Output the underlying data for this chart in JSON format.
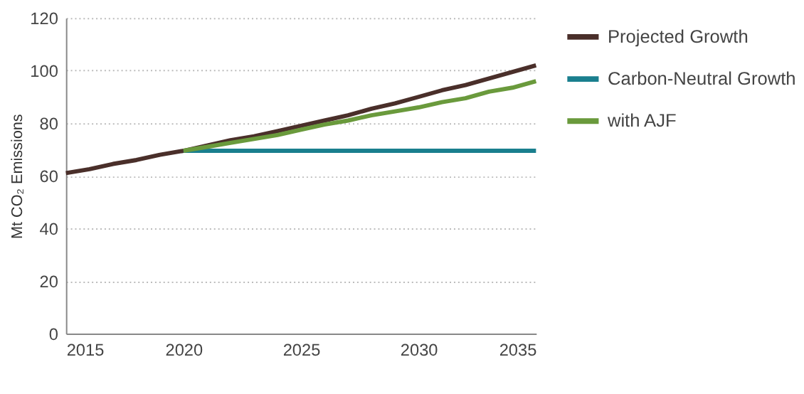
{
  "chart_data": {
    "type": "line",
    "ylabel": "Mt CO₂ Emissions",
    "xlim": [
      2015,
      2035
    ],
    "xticks": [
      2015,
      2020,
      2025,
      2030,
      2035
    ],
    "ylim": [
      0,
      120
    ],
    "yticks": [
      0,
      20,
      40,
      60,
      80,
      100,
      120
    ],
    "grid": "y",
    "legend": "right",
    "marker": "none",
    "line_style": "solid",
    "series": [
      {
        "name": "Projected Growth",
        "color": "#4a2f2a",
        "x": [
          2015,
          2016,
          2017,
          2018,
          2019,
          2020,
          2021,
          2022,
          2023,
          2024,
          2025,
          2026,
          2027,
          2028,
          2029,
          2030,
          2031,
          2032,
          2033,
          2034,
          2035
        ],
        "values": [
          61,
          62.5,
          64.5,
          66,
          68,
          69.5,
          71.5,
          73.5,
          75,
          77,
          79,
          81,
          83,
          85.5,
          87.5,
          90,
          92.5,
          94.5,
          97,
          99.5,
          102
        ]
      },
      {
        "name": "Carbon-Neutral Growth",
        "color": "#1a7f8e",
        "x": [
          2020,
          2035
        ],
        "values": [
          69.5,
          69.5
        ]
      },
      {
        "name": "with AJF",
        "color": "#6a9a3c",
        "x": [
          2020,
          2021,
          2022,
          2023,
          2024,
          2025,
          2026,
          2027,
          2028,
          2029,
          2030,
          2031,
          2032,
          2033,
          2034,
          2035
        ],
        "values": [
          69.5,
          71,
          72.5,
          74,
          75.5,
          77.5,
          79.5,
          81,
          83,
          84.5,
          86,
          88,
          89.5,
          92,
          93.5,
          96
        ]
      }
    ]
  }
}
